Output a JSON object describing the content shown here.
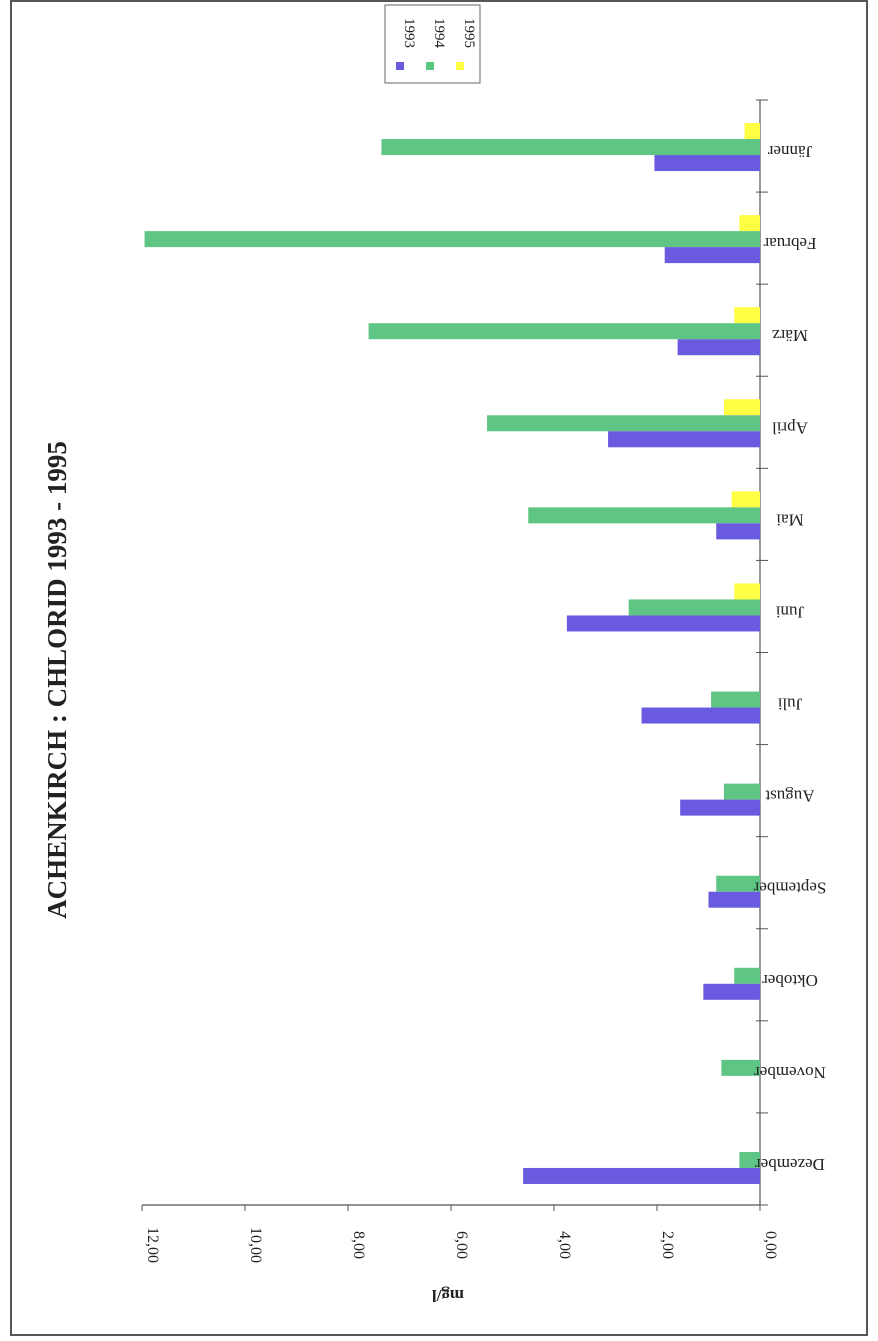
{
  "chart_data": {
    "type": "bar",
    "orientation": "horizontal-rotated",
    "title": "ACHENKIRCH : CHLORID 1993 - 1995",
    "ylabel": "mg/l",
    "xlabel": "",
    "categories": [
      "Jänner",
      "Februar",
      "März",
      "April",
      "Mai",
      "Juni",
      "Juli",
      "August",
      "September",
      "Oktober",
      "November",
      "Dezember"
    ],
    "yticks": [
      "0,00",
      "2,00",
      "4,00",
      "6,00",
      "8,00",
      "10,00",
      "12,00"
    ],
    "ylim": [
      0,
      12
    ],
    "grid": false,
    "legend_position": "top-right",
    "series": [
      {
        "name": "1993",
        "color": "#6a5adf",
        "values": [
          2.05,
          1.85,
          1.6,
          2.95,
          0.85,
          3.75,
          2.3,
          1.55,
          1.0,
          1.1,
          null,
          4.6
        ]
      },
      {
        "name": "1994",
        "color": "#5fc584",
        "values": [
          7.35,
          11.95,
          7.6,
          5.3,
          4.5,
          2.55,
          0.95,
          0.7,
          0.85,
          0.5,
          0.75,
          0.4
        ]
      },
      {
        "name": "1995",
        "color": "#ffff44",
        "values": [
          0.3,
          0.4,
          0.5,
          0.7,
          0.55,
          0.5,
          null,
          null,
          null,
          null,
          null,
          null
        ]
      }
    ]
  }
}
